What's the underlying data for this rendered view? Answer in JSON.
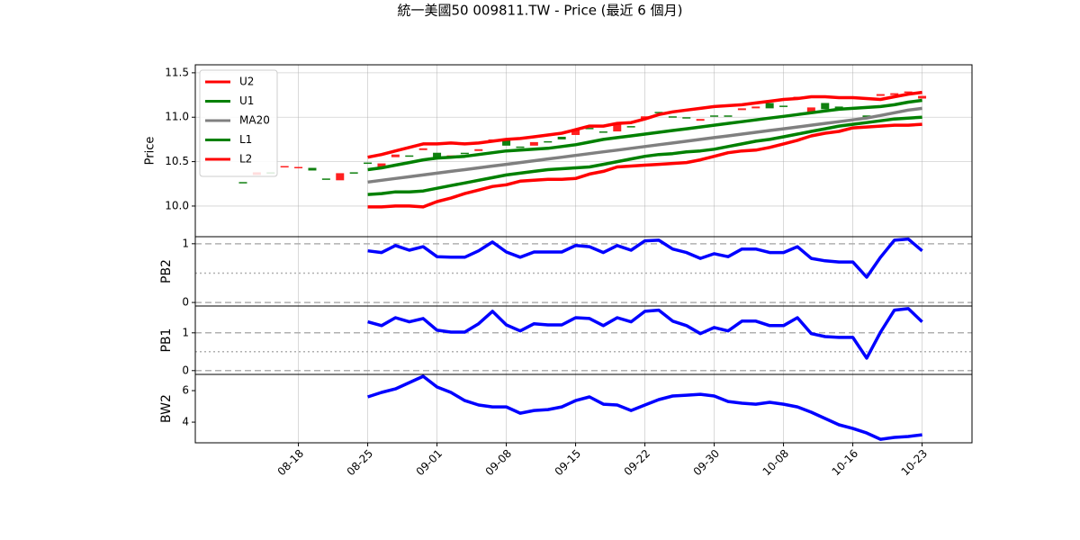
{
  "chart_data": [
    {
      "type": "candlestick",
      "title": "統一美國50 009811.TW - Price (最近 6 個月)",
      "ylabel": "Price",
      "open": [
        10.27,
        10.35,
        10.38,
        10.44,
        10.43,
        10.43,
        10.31,
        10.29,
        10.38,
        10.49,
        10.43,
        10.55,
        10.57,
        10.63,
        10.6,
        10.56,
        10.6,
        10.62,
        10.73,
        10.74,
        10.67,
        10.68,
        10.73,
        10.78,
        10.8,
        10.88,
        10.84,
        10.84,
        10.9,
        10.98,
        11.06,
        11.01,
        11.0,
        10.96,
        11.02,
        11.02,
        11.08,
        11.1,
        11.16,
        11.13,
        11.2,
        11.04,
        11.16,
        11.12,
        11.09,
        11.02,
        11.24,
        11.25,
        11.28,
        11.21
      ],
      "close": [
        10.26,
        10.38,
        10.37,
        10.45,
        10.44,
        10.4,
        10.3,
        10.37,
        10.37,
        10.48,
        10.48,
        10.58,
        10.56,
        10.65,
        10.53,
        10.57,
        10.59,
        10.64,
        10.75,
        10.68,
        10.66,
        10.72,
        10.72,
        10.75,
        10.86,
        10.87,
        10.83,
        10.92,
        10.89,
        11.01,
        11.05,
        11.0,
        10.99,
        10.98,
        11.01,
        11.01,
        11.1,
        11.12,
        11.1,
        11.12,
        11.23,
        11.11,
        11.09,
        11.1,
        11.11,
        11.0,
        11.26,
        11.27,
        11.29,
        11.24
      ],
      "up_color": "#ff2020",
      "down_color": "#108010",
      "series": [
        {
          "name": "U2",
          "color": "#ff0000",
          "values": [
            null,
            null,
            null,
            null,
            null,
            null,
            null,
            null,
            null,
            10.55,
            10.58,
            10.62,
            10.66,
            10.7,
            10.7,
            10.71,
            10.7,
            10.71,
            10.73,
            10.75,
            10.76,
            10.78,
            10.8,
            10.82,
            10.86,
            10.9,
            10.9,
            10.93,
            10.94,
            10.98,
            11.03,
            11.06,
            11.08,
            11.1,
            11.12,
            11.13,
            11.14,
            11.16,
            11.18,
            11.2,
            11.21,
            11.23,
            11.23,
            11.22,
            11.22,
            11.21,
            11.2,
            11.23,
            11.26,
            11.28
          ]
        },
        {
          "name": "U1",
          "color": "#008000",
          "values": [
            null,
            null,
            null,
            null,
            null,
            null,
            null,
            null,
            null,
            10.41,
            10.43,
            10.46,
            10.49,
            10.52,
            10.54,
            10.55,
            10.56,
            10.58,
            10.6,
            10.62,
            10.63,
            10.64,
            10.65,
            10.67,
            10.69,
            10.72,
            10.75,
            10.77,
            10.79,
            10.81,
            10.83,
            10.85,
            10.87,
            10.89,
            10.91,
            10.93,
            10.95,
            10.97,
            10.99,
            11.01,
            11.03,
            11.05,
            11.07,
            11.09,
            11.1,
            11.11,
            11.12,
            11.14,
            11.17,
            11.19
          ]
        },
        {
          "name": "MA20",
          "color": "#808080",
          "values": [
            null,
            null,
            null,
            null,
            null,
            null,
            null,
            null,
            null,
            10.27,
            10.29,
            10.31,
            10.33,
            10.35,
            10.37,
            10.39,
            10.41,
            10.43,
            10.45,
            10.47,
            10.49,
            10.51,
            10.53,
            10.55,
            10.57,
            10.59,
            10.61,
            10.63,
            10.65,
            10.67,
            10.69,
            10.71,
            10.73,
            10.75,
            10.77,
            10.79,
            10.81,
            10.83,
            10.85,
            10.87,
            10.89,
            10.91,
            10.93,
            10.95,
            10.97,
            10.99,
            11.02,
            11.05,
            11.08,
            11.1
          ]
        },
        {
          "name": "L1",
          "color": "#008000",
          "values": [
            null,
            null,
            null,
            null,
            null,
            null,
            null,
            null,
            null,
            10.13,
            10.14,
            10.16,
            10.16,
            10.17,
            10.2,
            10.23,
            10.26,
            10.29,
            10.32,
            10.35,
            10.37,
            10.39,
            10.41,
            10.42,
            10.43,
            10.44,
            10.47,
            10.5,
            10.53,
            10.56,
            10.58,
            10.59,
            10.61,
            10.62,
            10.64,
            10.67,
            10.7,
            10.73,
            10.75,
            10.78,
            10.81,
            10.84,
            10.87,
            10.9,
            10.92,
            10.94,
            10.96,
            10.98,
            10.99,
            11.0
          ]
        },
        {
          "name": "L2",
          "color": "#ff0000",
          "values": [
            null,
            null,
            null,
            null,
            null,
            null,
            null,
            null,
            null,
            9.99,
            9.99,
            10.0,
            10.0,
            9.99,
            10.05,
            10.09,
            10.14,
            10.18,
            10.22,
            10.24,
            10.28,
            10.29,
            10.3,
            10.3,
            10.31,
            10.36,
            10.39,
            10.44,
            10.45,
            10.46,
            10.47,
            10.48,
            10.49,
            10.52,
            10.56,
            10.6,
            10.62,
            10.63,
            10.66,
            10.7,
            10.74,
            10.79,
            10.82,
            10.84,
            10.88,
            10.89,
            10.9,
            10.91,
            10.91,
            10.92
          ]
        }
      ],
      "ylim": [
        9.655,
        11.59
      ],
      "yticks": [
        {
          "value": 10.0,
          "label": "10.0"
        },
        {
          "value": 10.5,
          "label": "10.5"
        },
        {
          "value": 11.0,
          "label": "11.0"
        },
        {
          "value": 11.5,
          "label": "11.5"
        }
      ],
      "grid": true,
      "legend": "upper left"
    },
    {
      "type": "line",
      "ylabel": "PB2",
      "color": "#0000ff",
      "values": [
        null,
        null,
        null,
        null,
        null,
        null,
        null,
        null,
        null,
        0.88,
        0.85,
        0.97,
        0.89,
        0.95,
        0.78,
        0.77,
        0.77,
        0.88,
        1.03,
        0.86,
        0.77,
        0.86,
        0.86,
        0.86,
        0.97,
        0.95,
        0.85,
        0.97,
        0.89,
        1.05,
        1.06,
        0.91,
        0.85,
        0.75,
        0.83,
        0.78,
        0.91,
        0.91,
        0.85,
        0.85,
        0.95,
        0.75,
        0.71,
        0.69,
        0.69,
        0.43,
        0.77,
        1.06,
        1.08,
        0.88
      ],
      "ylim": [
        -0.06,
        1.12
      ],
      "yticks": [
        0,
        1
      ],
      "hlines_dashed": [
        0,
        1
      ],
      "hlines_dotted": [
        0.5
      ]
    },
    {
      "type": "line",
      "ylabel": "PB1",
      "color": "#0000ff",
      "values": [
        null,
        null,
        null,
        null,
        null,
        null,
        null,
        null,
        null,
        1.29,
        1.19,
        1.4,
        1.29,
        1.38,
        1.07,
        1.02,
        1.02,
        1.24,
        1.57,
        1.21,
        1.05,
        1.24,
        1.21,
        1.21,
        1.4,
        1.38,
        1.19,
        1.4,
        1.29,
        1.57,
        1.6,
        1.31,
        1.19,
        0.98,
        1.14,
        1.05,
        1.31,
        1.31,
        1.19,
        1.19,
        1.4,
        0.98,
        0.9,
        0.88,
        0.88,
        0.33,
        1.02,
        1.6,
        1.64,
        1.29
      ],
      "ylim": [
        -0.1,
        1.71
      ],
      "yticks": [
        0,
        1
      ],
      "hlines_dashed": [
        0,
        1
      ],
      "hlines_dotted": [
        0.5
      ]
    },
    {
      "type": "line",
      "ylabel": "BW2",
      "color": "#0000ff",
      "values": [
        null,
        null,
        null,
        null,
        null,
        null,
        null,
        null,
        null,
        5.6,
        5.89,
        6.11,
        6.51,
        6.91,
        6.23,
        5.89,
        5.37,
        5.09,
        4.97,
        4.97,
        4.57,
        4.74,
        4.8,
        4.97,
        5.37,
        5.6,
        5.14,
        5.09,
        4.74,
        5.09,
        5.43,
        5.66,
        5.71,
        5.77,
        5.66,
        5.31,
        5.2,
        5.14,
        5.26,
        5.14,
        4.97,
        4.63,
        4.23,
        3.83,
        3.6,
        3.31,
        2.91,
        3.03,
        3.09,
        3.2
      ],
      "ylim": [
        2.69,
        7.03
      ],
      "yticks": [
        4,
        6
      ],
      "categories": [
        null,
        null,
        null,
        null,
        "08-18",
        null,
        null,
        null,
        null,
        "08-25",
        null,
        null,
        null,
        null,
        "09-01",
        null,
        null,
        null,
        null,
        "09-08",
        null,
        null,
        null,
        null,
        "09-15",
        null,
        null,
        null,
        null,
        "09-22",
        null,
        null,
        null,
        null,
        "09-30",
        null,
        null,
        null,
        null,
        "10-08",
        null,
        null,
        null,
        null,
        "10-16",
        null,
        null,
        null,
        null,
        "10-23"
      ],
      "xlim": [
        -3.44,
        52.6
      ]
    }
  ]
}
